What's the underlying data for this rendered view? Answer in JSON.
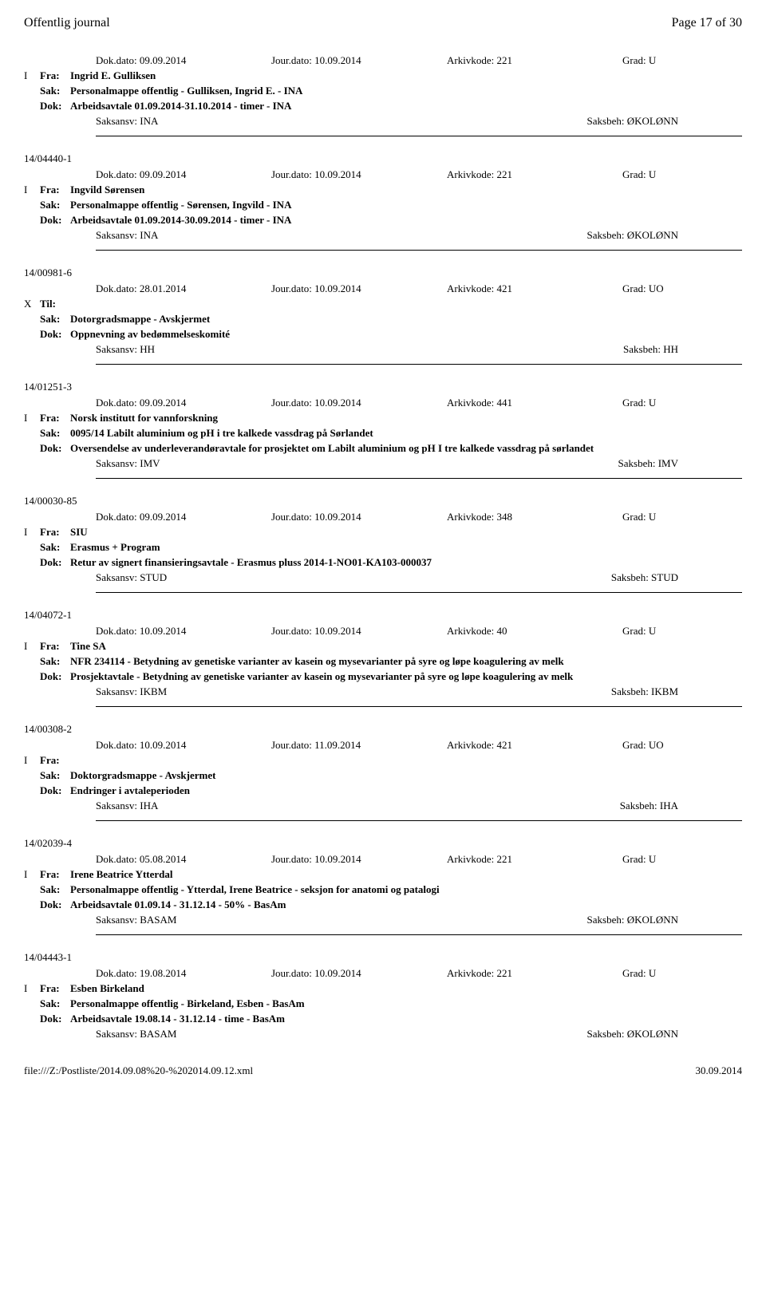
{
  "header": {
    "title": "Offentlig journal",
    "page": "Page 17 of 30"
  },
  "topEntry": {
    "dokdato": "Dok.dato: 09.09.2014",
    "jourdato": "Jour.dato: 10.09.2014",
    "arkivkode": "Arkivkode: 221",
    "grad": "Grad: U",
    "type": "I",
    "fraLabel": "Fra:",
    "fra": "Ingrid E. Gulliksen",
    "sakLabel": "Sak:",
    "sak": "Personalmappe offentlig - Gulliksen, Ingrid E. - INA",
    "dokLabel": "Dok:",
    "dok": "Arbeidsavtale 01.09.2014-31.10.2014 - timer - INA",
    "saksansv": "Saksansv: INA",
    "saksbeh": "Saksbeh: ØKOLØNN"
  },
  "entries": [
    {
      "caseId": "14/04440-1",
      "dokdato": "Dok.dato: 09.09.2014",
      "jourdato": "Jour.dato: 10.09.2014",
      "arkivkode": "Arkivkode: 221",
      "grad": "Grad: U",
      "type": "I",
      "fraLabel": "Fra:",
      "fra": "Ingvild Sørensen",
      "sakLabel": "Sak:",
      "sak": "Personalmappe offentlig - Sørensen, Ingvild - INA",
      "dokLabel": "Dok:",
      "dok": "Arbeidsavtale 01.09.2014-30.09.2014 - timer - INA",
      "saksansv": "Saksansv: INA",
      "saksbeh": "Saksbeh: ØKOLØNN"
    },
    {
      "caseId": "14/00981-6",
      "dokdato": "Dok.dato: 28.01.2014",
      "jourdato": "Jour.dato: 10.09.2014",
      "arkivkode": "Arkivkode: 421",
      "grad": "Grad: UO",
      "type": "X",
      "fraLabel": "Til:",
      "fra": "",
      "sakLabel": "Sak:",
      "sak": "Dotorgradsmappe - Avskjermet",
      "dokLabel": "Dok:",
      "dok": "Oppnevning av bedømmelseskomité",
      "saksansv": "Saksansv: HH",
      "saksbeh": "Saksbeh: HH"
    },
    {
      "caseId": "14/01251-3",
      "dokdato": "Dok.dato: 09.09.2014",
      "jourdato": "Jour.dato: 10.09.2014",
      "arkivkode": "Arkivkode: 441",
      "grad": "Grad: U",
      "type": "I",
      "fraLabel": "Fra:",
      "fra": "Norsk institutt for vannforskning",
      "sakLabel": "Sak:",
      "sak": "0095/14 Labilt aluminium og pH i tre kalkede vassdrag på Sørlandet",
      "dokLabel": "Dok:",
      "dok": "Oversendelse av underleverandøravtale for prosjektet om Labilt aluminium og pH I tre kalkede vassdrag på sørlandet",
      "saksansv": "Saksansv: IMV",
      "saksbeh": "Saksbeh: IMV"
    },
    {
      "caseId": "14/00030-85",
      "dokdato": "Dok.dato: 09.09.2014",
      "jourdato": "Jour.dato: 10.09.2014",
      "arkivkode": "Arkivkode: 348",
      "grad": "Grad: U",
      "type": "I",
      "fraLabel": "Fra:",
      "fra": "SIU",
      "sakLabel": "Sak:",
      "sak": "Erasmus + Program",
      "dokLabel": "Dok:",
      "dok": "Retur av signert finansieringsavtale - Erasmus pluss 2014-1-NO01-KA103-000037",
      "saksansv": "Saksansv: STUD",
      "saksbeh": "Saksbeh: STUD"
    },
    {
      "caseId": "14/04072-1",
      "dokdato": "Dok.dato: 10.09.2014",
      "jourdato": "Jour.dato: 10.09.2014",
      "arkivkode": "Arkivkode: 40",
      "grad": "Grad: U",
      "type": "I",
      "fraLabel": "Fra:",
      "fra": "Tine SA",
      "sakLabel": "Sak:",
      "sak": "NFR 234114 - Betydning av genetiske varianter av kasein og mysevarianter på syre og løpe koagulering av melk",
      "dokLabel": "Dok:",
      "dok": "Prosjektavtale - Betydning av genetiske varianter av kasein og mysevarianter på syre og løpe koagulering av melk",
      "saksansv": "Saksansv: IKBM",
      "saksbeh": "Saksbeh: IKBM"
    },
    {
      "caseId": "14/00308-2",
      "dokdato": "Dok.dato: 10.09.2014",
      "jourdato": "Jour.dato: 11.09.2014",
      "arkivkode": "Arkivkode: 421",
      "grad": "Grad: UO",
      "type": "I",
      "fraLabel": "Fra:",
      "fra": "",
      "sakLabel": "Sak:",
      "sak": "Doktorgradsmappe - Avskjermet",
      "dokLabel": "Dok:",
      "dok": "Endringer i avtaleperioden",
      "saksansv": "Saksansv: IHA",
      "saksbeh": "Saksbeh: IHA"
    },
    {
      "caseId": "14/02039-4",
      "dokdato": "Dok.dato: 05.08.2014",
      "jourdato": "Jour.dato: 10.09.2014",
      "arkivkode": "Arkivkode: 221",
      "grad": "Grad: U",
      "type": "I",
      "fraLabel": "Fra:",
      "fra": "Irene Beatrice Ytterdal",
      "sakLabel": "Sak:",
      "sak": "Personalmappe offentlig - Ytterdal, Irene Beatrice - seksjon for anatomi og patalogi",
      "dokLabel": "Dok:",
      "dok": "Arbeidsavtale 01.09.14 - 31.12.14 - 50% - BasAm",
      "saksansv": "Saksansv: BASAM",
      "saksbeh": "Saksbeh: ØKOLØNN"
    },
    {
      "caseId": "14/04443-1",
      "dokdato": "Dok.dato: 19.08.2014",
      "jourdato": "Jour.dato: 10.09.2014",
      "arkivkode": "Arkivkode: 221",
      "grad": "Grad: U",
      "type": "I",
      "fraLabel": "Fra:",
      "fra": "Esben Birkeland",
      "sakLabel": "Sak:",
      "sak": "Personalmappe offentlig - Birkeland, Esben - BasAm",
      "dokLabel": "Dok:",
      "dok": "Arbeidsavtale 19.08.14 - 31.12.14 - time - BasAm",
      "saksansv": "Saksansv: BASAM",
      "saksbeh": "Saksbeh: ØKOLØNN"
    }
  ],
  "footer": {
    "path": "file:///Z:/Postliste/2014.09.08%20-%202014.09.12.xml",
    "date": "30.09.2014"
  }
}
